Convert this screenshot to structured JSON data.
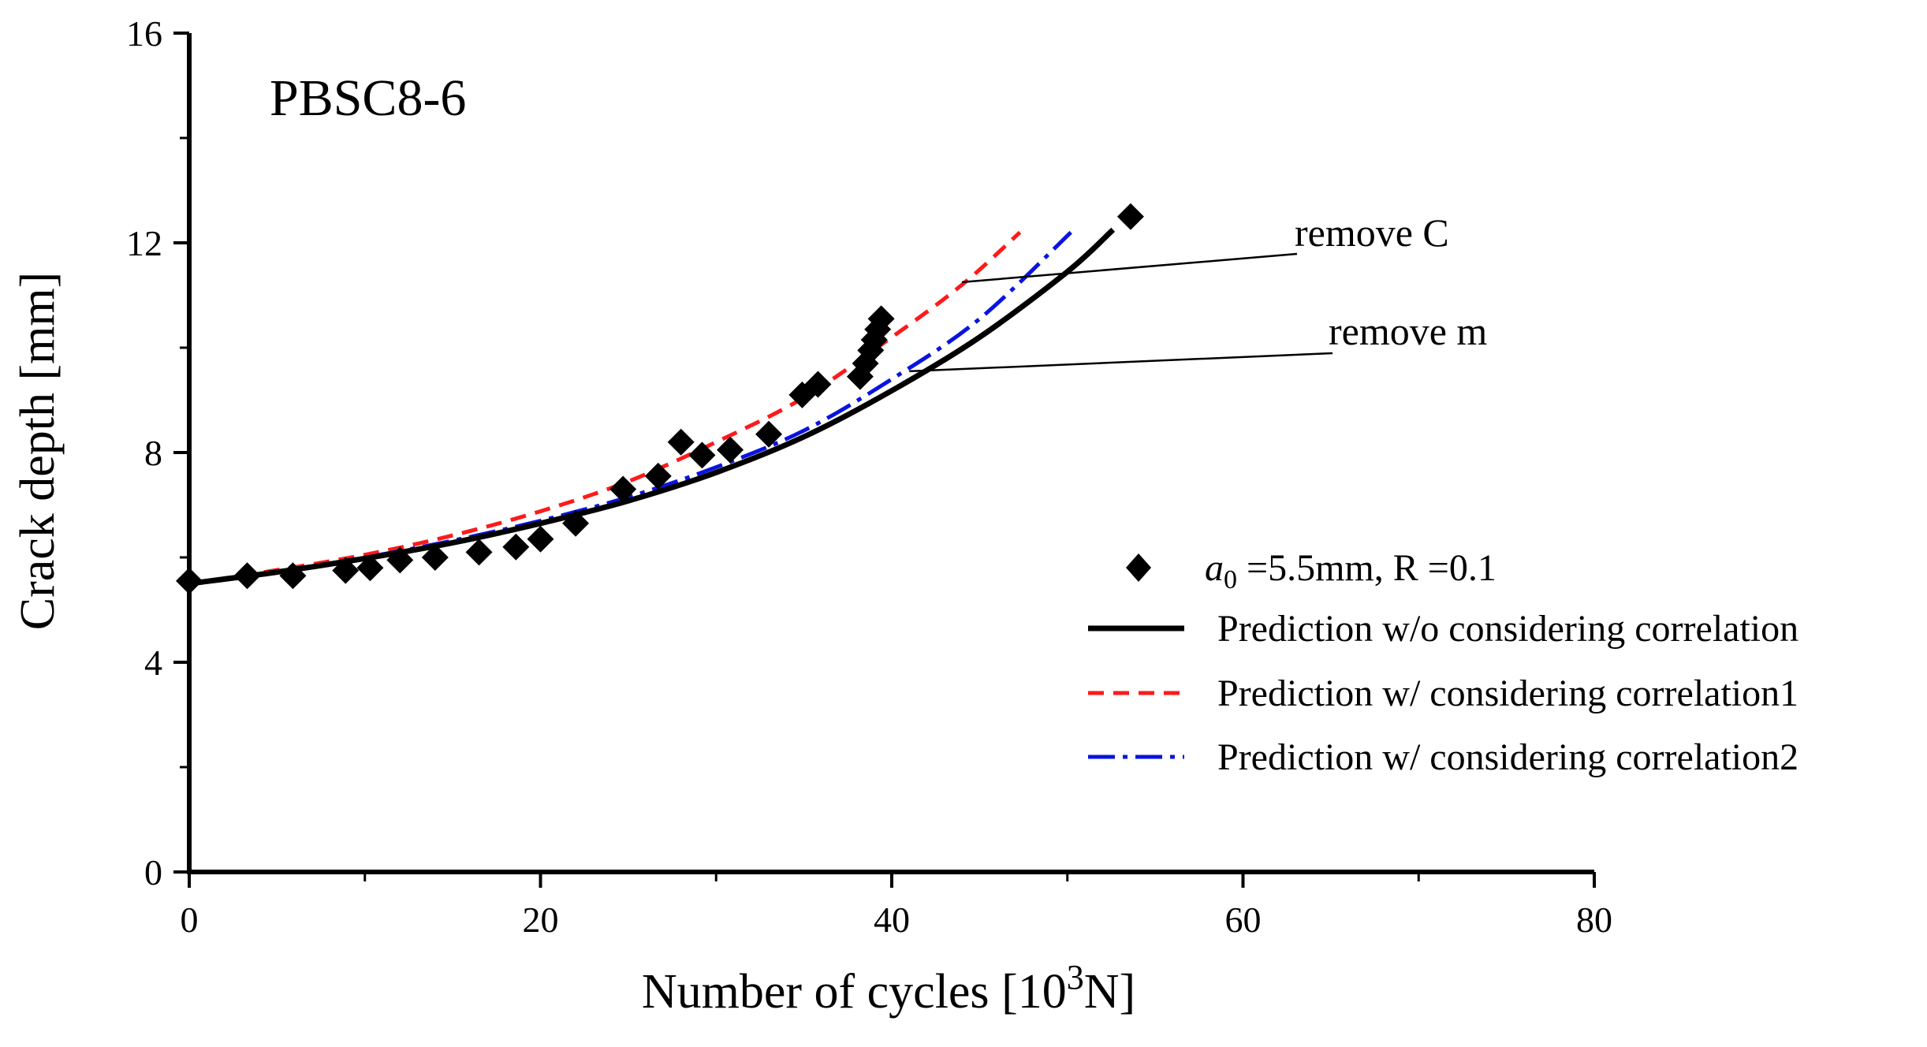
{
  "chart_data": {
    "type": "line",
    "specimen_label": "PBSC8-6",
    "xlabel": {
      "prefix": "Number of cycles [10",
      "sup": "3",
      "suffix": "N]"
    },
    "ylabel": "Crack depth [mm]",
    "xlim": [
      0,
      80
    ],
    "ylim": [
      0,
      16
    ],
    "xticks": [
      0,
      20,
      40,
      60,
      80
    ],
    "yticks": [
      0,
      4,
      8,
      12,
      16
    ],
    "x_minor_step": 10,
    "y_minor_step": 2,
    "grid": false,
    "legend_position": "right",
    "series": [
      {
        "name": "a0 =5.5mm, R =0.1",
        "legend_label": {
          "var": "a",
          "sub": "0",
          "rest": " =5.5mm, R =0.1"
        },
        "kind": "scatter",
        "marker": "diamond",
        "color": "#000000",
        "x": [
          0,
          3.3,
          5.9,
          8.9,
          10.3,
          12.0,
          14.0,
          16.5,
          18.6,
          20.0,
          22.0,
          24.7,
          26.7,
          28.0,
          29.2,
          30.8,
          33.0,
          34.9,
          35.8,
          38.2,
          38.5,
          38.8,
          39.0,
          39.2,
          39.4,
          53.6
        ],
        "y": [
          5.55,
          5.65,
          5.65,
          5.75,
          5.8,
          5.95,
          6.0,
          6.1,
          6.2,
          6.35,
          6.65,
          7.3,
          7.55,
          8.2,
          7.95,
          8.05,
          8.35,
          9.1,
          9.3,
          9.45,
          9.7,
          9.95,
          10.15,
          10.35,
          10.55,
          12.5
        ]
      },
      {
        "name": "Prediction w/o considering correlation",
        "kind": "line",
        "dash": "solid",
        "color": "#000000",
        "x": [
          0,
          5,
          10,
          15,
          20,
          25,
          30,
          35,
          40,
          45,
          50,
          52.6
        ],
        "y": [
          5.5,
          5.72,
          5.98,
          6.28,
          6.65,
          7.08,
          7.62,
          8.3,
          9.18,
          10.2,
          11.45,
          12.25
        ]
      },
      {
        "name": "Prediction w/ considering correlation1",
        "kind": "line",
        "dash": "dashed",
        "color": "#ff1a1a",
        "x": [
          0,
          5,
          10,
          15,
          20,
          25,
          30,
          35,
          40,
          44,
          47.3
        ],
        "y": [
          5.5,
          5.76,
          6.05,
          6.42,
          6.88,
          7.45,
          8.2,
          9.05,
          10.2,
          11.2,
          12.2
        ]
      },
      {
        "name": "Prediction w/ considering correlation2",
        "kind": "line",
        "dash": "dashdot",
        "color": "#0a14e0",
        "x": [
          0,
          5,
          10,
          15,
          20,
          25,
          30,
          35,
          40,
          45,
          50.2
        ],
        "y": [
          5.5,
          5.73,
          6.0,
          6.32,
          6.7,
          7.15,
          7.72,
          8.42,
          9.4,
          10.55,
          12.2
        ]
      }
    ],
    "annotations": [
      {
        "text": "remove C",
        "point_x": 44.0,
        "point_y": 11.25
      },
      {
        "text": "remove m",
        "point_x": 41.0,
        "point_y": 9.55
      }
    ]
  }
}
